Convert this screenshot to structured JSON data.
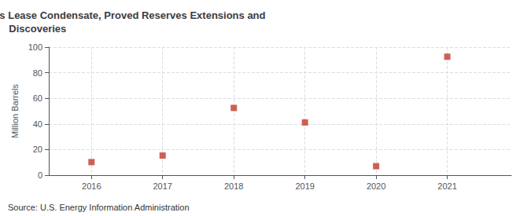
{
  "chart_data": {
    "type": "scatter",
    "title": "Annual New Mexico Natural Gas Liquids Lease Condensate, Proved Reserves Extensions and\nDiscoveries",
    "ylabel": "Million Barrels",
    "annotations": [
      "Source: U.S. Energy Information Administration"
    ],
    "x": [
      2016,
      2017,
      2018,
      2019,
      2020,
      2021
    ],
    "values": [
      10.2,
      15.3,
      52.5,
      41.2,
      7.0,
      92.5
    ],
    "xlim": [
      2015.4,
      2021.9
    ],
    "xticks": [
      2016,
      2017,
      2018,
      2019,
      2020,
      2021
    ],
    "ylim": [
      0,
      100
    ],
    "yticks": [
      0,
      20,
      40,
      60,
      80,
      100
    ],
    "grid": true,
    "color": "#c0392b",
    "marker": "square"
  }
}
